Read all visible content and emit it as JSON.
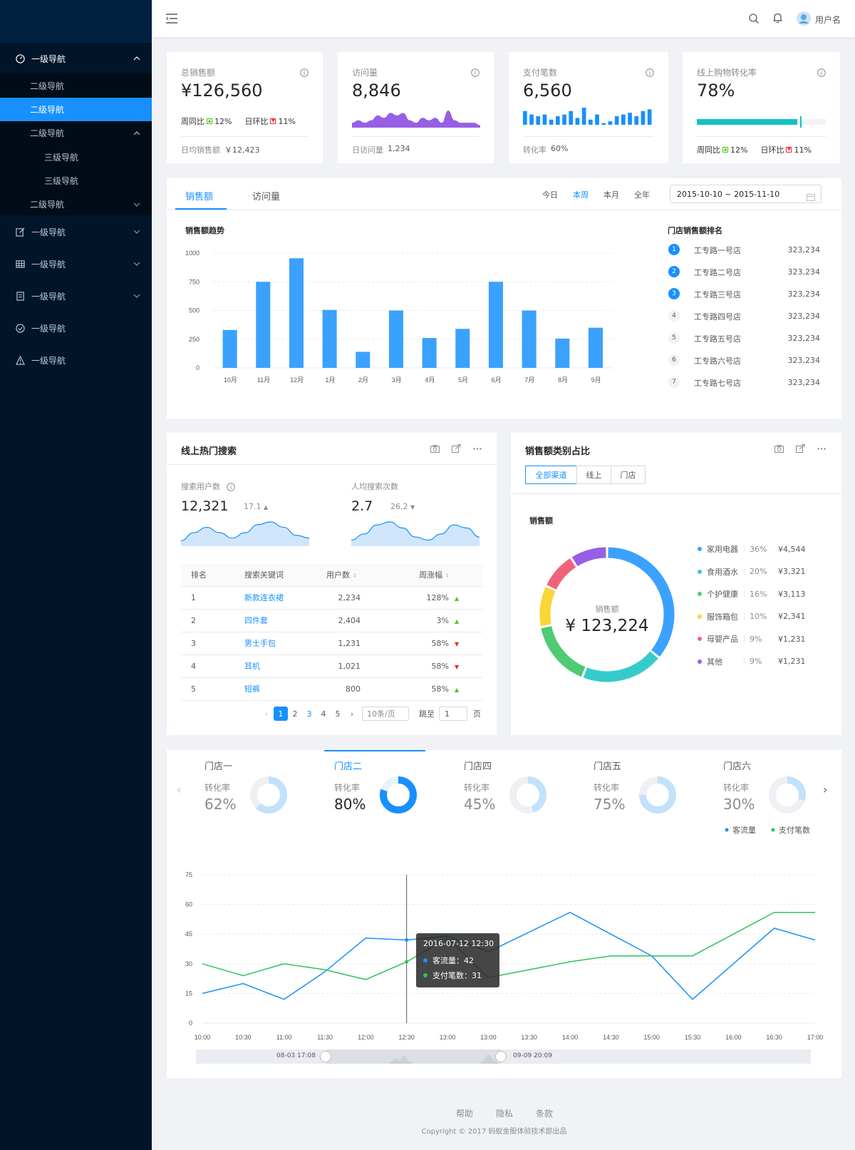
{
  "user": {
    "name": "用户名"
  },
  "sidebar": {
    "items": [
      {
        "label": "一级导航",
        "icon": "dashboard-icon"
      },
      {
        "label": "一级导航",
        "icon": "form-icon"
      },
      {
        "label": "一级导航",
        "icon": "table-icon"
      },
      {
        "label": "一级导航",
        "icon": "profile-icon"
      },
      {
        "label": "一级导航",
        "icon": "check-circle-icon"
      },
      {
        "label": "一级导航",
        "icon": "warning-icon"
      }
    ],
    "sub": [
      "二级导航",
      "二级导航",
      "二级导航",
      "三级导航",
      "三级导航",
      "二级导航"
    ]
  },
  "stats": [
    {
      "title": "总销售额",
      "value": "¥126,560",
      "wow_label": "周同比",
      "wow": "12%",
      "dod_label": "日环比",
      "dod": "11%",
      "foot_label": "日均销售额",
      "foot_value": "￥12,423"
    },
    {
      "title": "访问量",
      "value": "8,846",
      "foot_label": "日访问量",
      "foot_value": "1,234"
    },
    {
      "title": "支付笔数",
      "value": "6,560",
      "foot_label": "转化率",
      "foot_value": "60%"
    },
    {
      "title": "线上购物转化率",
      "value": "78%",
      "progress": 0.78,
      "wow_label": "周同比",
      "wow": "12%",
      "dod_label": "日环比",
      "dod": "11%"
    }
  ],
  "sales": {
    "tabs": [
      "销售额",
      "访问量"
    ],
    "periods": [
      "今日",
      "本周",
      "本月",
      "全年"
    ],
    "active_period": "本周",
    "date_range": "2015-10-10 ~ 2015-11-10",
    "rank_title": "门店销售额排名",
    "ranking": [
      {
        "rank": "1",
        "name": "工专路一号店",
        "value": "323,234"
      },
      {
        "rank": "2",
        "name": "工专路二号店",
        "value": "323,234"
      },
      {
        "rank": "3",
        "name": "工专路三号店",
        "value": "323,234"
      },
      {
        "rank": "4",
        "name": "工专路四号店",
        "value": "323,234"
      },
      {
        "rank": "5",
        "name": "工专路五号店",
        "value": "323,234"
      },
      {
        "rank": "6",
        "name": "工专路六号店",
        "value": "323,234"
      },
      {
        "rank": "7",
        "name": "工专路七号店",
        "value": "323,234"
      }
    ]
  },
  "search": {
    "title": "线上热门搜索",
    "users_label": "搜索用户数",
    "users_value": "12,321",
    "users_delta": "17.1",
    "per_label": "人均搜索次数",
    "per_value": "2.7",
    "per_delta": "26.2",
    "columns": [
      "排名",
      "搜索关键词",
      "用户数",
      "周涨幅"
    ],
    "rows": [
      {
        "rank": "1",
        "keyword": "新款连衣裙",
        "users": "2,234",
        "change": "128%",
        "dir": "up"
      },
      {
        "rank": "2",
        "keyword": "四件套",
        "users": "2,404",
        "change": "3%",
        "dir": "up"
      },
      {
        "rank": "3",
        "keyword": "男士手包",
        "users": "1,231",
        "change": "58%",
        "dir": "down"
      },
      {
        "rank": "4",
        "keyword": "耳机",
        "users": "1,021",
        "change": "58%",
        "dir": "down"
      },
      {
        "rank": "5",
        "keyword": "短裤",
        "users": "800",
        "change": "58%",
        "dir": "up"
      }
    ],
    "pages": [
      "1",
      "2",
      "3",
      "4",
      "5"
    ],
    "page_size": "10条/页",
    "jump_label": "跳至",
    "jump_value": "1",
    "page_unit": "页"
  },
  "category": {
    "title": "销售额类别占比",
    "tabs": [
      "全部渠道",
      "线上",
      "门店"
    ],
    "subtitle": "销售额",
    "center_label": "销售额",
    "center_value": "¥ 123,224"
  },
  "stores": {
    "rate_label": "转化率",
    "items": [
      {
        "name": "门店一",
        "rate": "62%",
        "ratio": 0.62
      },
      {
        "name": "门店二",
        "rate": "80%",
        "ratio": 0.8
      },
      {
        "name": "门店四",
        "rate": "45%",
        "ratio": 0.45
      },
      {
        "name": "门店五",
        "rate": "75%",
        "ratio": 0.75
      },
      {
        "name": "门店六",
        "rate": "30%",
        "ratio": 0.3
      }
    ],
    "tooltip": {
      "time": "2016-07-12 12:30",
      "s1": "客流量：42",
      "s2": "支付笔数：31"
    },
    "slider_start": "08-03 17:08",
    "slider_end": "09-09 20:09"
  },
  "footer": {
    "links": [
      "帮助",
      "隐私",
      "条款"
    ],
    "copyright": "Copyright © 2017 蚂蚁金服体验技术部出品"
  },
  "colors": {
    "primary": "#1890ff",
    "sider": "#001529",
    "up": "#52c41a",
    "down": "#f5222d"
  },
  "chart_data": [
    {
      "type": "area",
      "ref": "visits-mini",
      "values": [
        2,
        3,
        2,
        3,
        5,
        4,
        6,
        5,
        6,
        3,
        2,
        4,
        3,
        4,
        2,
        7,
        3,
        2,
        2,
        2,
        1
      ]
    },
    {
      "type": "bar",
      "ref": "payments-mini",
      "values": [
        8,
        6,
        5,
        6,
        3,
        5,
        6,
        8,
        4,
        10,
        3,
        6,
        1,
        2,
        5,
        6,
        7,
        5,
        8,
        9
      ]
    },
    {
      "type": "bar",
      "title": "销售额趋势",
      "categories": [
        "10月",
        "11月",
        "12月",
        "1月",
        "2月",
        "3月",
        "4月",
        "5月",
        "6月",
        "7月",
        "8月",
        "9月"
      ],
      "values": [
        330,
        750,
        955,
        505,
        140,
        500,
        260,
        340,
        750,
        500,
        255,
        350
      ],
      "ylim": [
        0,
        1000
      ],
      "yticks": [
        "0",
        "250",
        "500",
        "750",
        "1000"
      ],
      "grid": true
    },
    {
      "type": "area",
      "ref": "search-users-mini",
      "values": [
        2,
        5,
        7,
        5,
        3,
        5,
        8,
        9,
        7,
        4,
        3
      ]
    },
    {
      "type": "area",
      "ref": "search-per-mini",
      "values": [
        2,
        4,
        7,
        8,
        6,
        3,
        2,
        4,
        7,
        6,
        3
      ]
    },
    {
      "type": "pie",
      "donut": true,
      "series": [
        {
          "name": "家用电器",
          "percent": "36%",
          "value": "¥4,544",
          "color": "#3ba1ff"
        },
        {
          "name": "食用酒水",
          "percent": "20%",
          "value": "¥3,321",
          "color": "#36cbcb"
        },
        {
          "name": "个护健康",
          "percent": "16%",
          "value": "¥3,113",
          "color": "#4ecb73"
        },
        {
          "name": "服饰箱包",
          "percent": "10%",
          "value": "¥2,341",
          "color": "#fbd437"
        },
        {
          "name": "母婴产品",
          "percent": "9%",
          "value": "¥1,231",
          "color": "#f2637b"
        },
        {
          "name": "其他",
          "percent": "9%",
          "value": "¥1,231",
          "color": "#975fe5"
        }
      ]
    },
    {
      "type": "line",
      "x": [
        "10:00",
        "10:30",
        "11:00",
        "11:30",
        "12:00",
        "12:30",
        "13:00",
        "13:00",
        "13:30",
        "14:00",
        "14:30",
        "15:00",
        "15:30",
        "16:00",
        "16:30",
        "17:00"
      ],
      "ylim": [
        0,
        75
      ],
      "yticks": [
        "0",
        "15",
        "30",
        "45",
        "60",
        "75"
      ],
      "series": [
        {
          "name": "客流量",
          "color": "#1890ff",
          "values": [
            15,
            20,
            12,
            26,
            43,
            42,
            44,
            36,
            46,
            56,
            45,
            34,
            12,
            30,
            48,
            42
          ]
        },
        {
          "name": "支付笔数",
          "color": "#2fc25b",
          "values": [
            30,
            24,
            30,
            27,
            22,
            31,
            43,
            23,
            27,
            31,
            34,
            34,
            34,
            45,
            56,
            56
          ]
        }
      ]
    }
  ]
}
